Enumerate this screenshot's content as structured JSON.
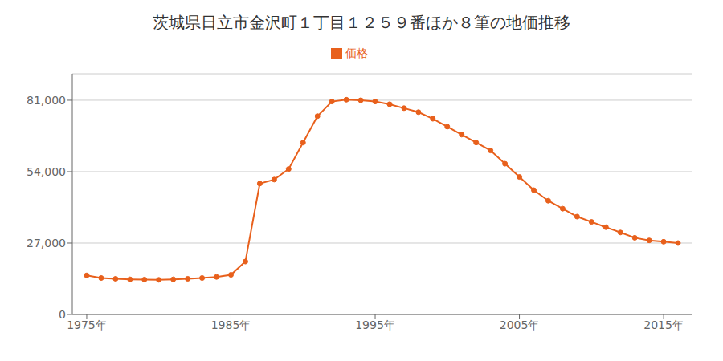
{
  "chart_data": {
    "type": "line",
    "title": "茨城県日立市金沢町１丁目１２５９番ほか８筆の地価推移",
    "x": [
      1975,
      1976,
      1977,
      1978,
      1979,
      1980,
      1981,
      1982,
      1983,
      1984,
      1985,
      1986,
      1987,
      1988,
      1989,
      1990,
      1991,
      1992,
      1993,
      1994,
      1995,
      1996,
      1997,
      1998,
      1999,
      2000,
      2001,
      2002,
      2003,
      2004,
      2005,
      2006,
      2007,
      2008,
      2009,
      2010,
      2011,
      2012,
      2013,
      2014,
      2015,
      2016
    ],
    "series": [
      {
        "name": "価格",
        "color": "#e8601c",
        "marker": "circle",
        "values": [
          14800,
          13800,
          13500,
          13300,
          13200,
          13100,
          13300,
          13500,
          13800,
          14200,
          15000,
          20000,
          49500,
          51000,
          55000,
          65000,
          75000,
          80500,
          81200,
          81000,
          80500,
          79500,
          78000,
          76500,
          74000,
          71000,
          68000,
          65000,
          62000,
          57000,
          52000,
          47000,
          43000,
          40000,
          37000,
          35000,
          33000,
          31000,
          29000,
          28000,
          27500,
          27000
        ]
      }
    ],
    "xlim": [
      1974,
      2017
    ],
    "xticks": [
      {
        "value": 1975,
        "label": "1975年"
      },
      {
        "value": 1985,
        "label": "1985年"
      },
      {
        "value": 1995,
        "label": "1995年"
      },
      {
        "value": 2005,
        "label": "2005年"
      },
      {
        "value": 2015,
        "label": "2015年"
      }
    ],
    "ylim": [
      0,
      91000
    ],
    "yticks": [
      0,
      {
        "value": 27000,
        "label": "27,000"
      },
      {
        "value": 54000,
        "label": "54,000"
      },
      {
        "value": 81000,
        "label": "81,000"
      }
    ],
    "grid": "y",
    "legend": "top"
  }
}
